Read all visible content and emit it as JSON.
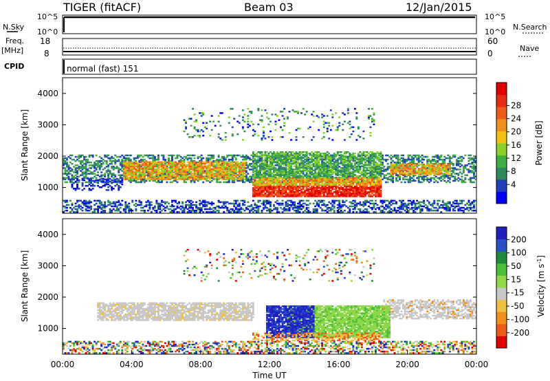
{
  "header": {
    "station": "TIGER (fitACF)",
    "beam": "Beam 03",
    "date": "12/Jan/2015"
  },
  "strips": {
    "nsky": {
      "label": "N.Sky",
      "ticks": [
        "10^5",
        "10^0"
      ]
    },
    "nsearch": {
      "label": "N.Search",
      "ticks": [
        "10^5",
        "10^0"
      ]
    },
    "freq": {
      "label_line1": "Freq.",
      "label_line2": "[MHz]",
      "ticks": [
        "18",
        "8"
      ]
    },
    "nave": {
      "label": "Nave",
      "ticks": [
        "60",
        "0"
      ]
    },
    "cpid": {
      "label": "CPID",
      "value": "normal (fast) 151"
    }
  },
  "chart_data": [
    {
      "type": "heatmap",
      "name": "power",
      "ylabel": "Slant Range [km]",
      "xlabel": "",
      "x_range_hours": [
        0,
        24
      ],
      "ylim": [
        180,
        4500
      ],
      "yticks": [
        1000,
        2000,
        3000,
        4000
      ],
      "colorbar": {
        "label": "Power [dB]",
        "ticks": [
          "4",
          "8",
          "12",
          "16",
          "20",
          "24",
          "28"
        ],
        "colors": [
          "#0000ff",
          "#1f3fbf",
          "#2e8a5c",
          "#3fb03f",
          "#8ad12a",
          "#f4c20d",
          "#f28e1c",
          "#ee5a18",
          "#e82a14",
          "#e00000"
        ]
      }
    },
    {
      "type": "heatmap",
      "name": "velocity",
      "ylabel": "Slant Range [km]",
      "xlabel": "Time UT",
      "x_range_hours": [
        0,
        24
      ],
      "ylim": [
        180,
        4500
      ],
      "yticks": [
        1000,
        2000,
        3000,
        4000
      ],
      "xticks": [
        "00:00",
        "04:00",
        "08:00",
        "12:00",
        "16:00",
        "20:00",
        "00:00"
      ],
      "colorbar": {
        "label_main": "Velocity [m s",
        "label_sup": "-1",
        "label_end": "]",
        "ticks": [
          "200",
          "100",
          "50",
          "15",
          "-15",
          "-50",
          "-100",
          "-200"
        ],
        "colors": [
          "#2020c0",
          "#2850c8",
          "#1f8a3a",
          "#4bbf3a",
          "#8fd848",
          "#c8c8c8",
          "#f0c040",
          "#f09018",
          "#ee5a18",
          "#e00000"
        ]
      }
    }
  ]
}
